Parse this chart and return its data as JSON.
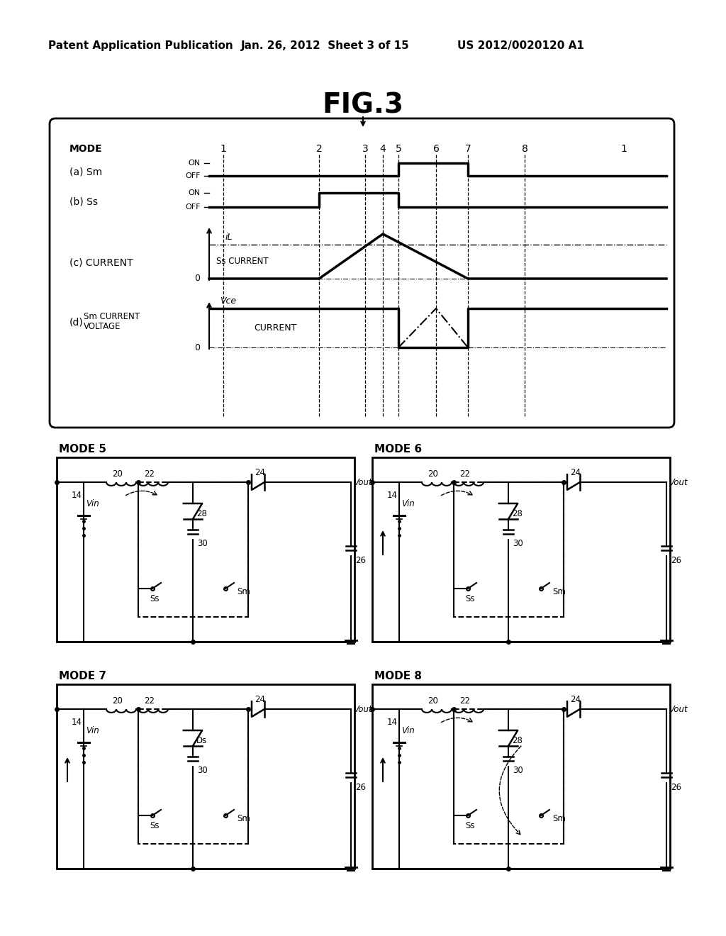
{
  "title": "FIG.3",
  "header_left": "Patent Application Publication",
  "header_mid": "Jan. 26, 2012  Sheet 3 of 15",
  "header_right": "US 2012/0020120 A1",
  "bg_color": "#ffffff"
}
